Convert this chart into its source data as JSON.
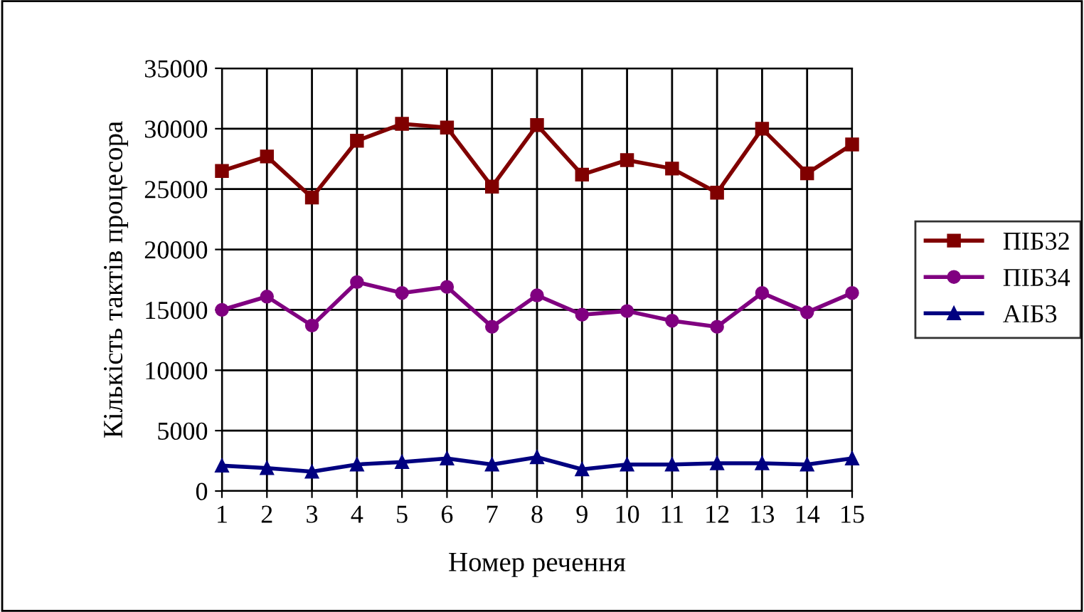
{
  "chart_data": {
    "type": "line",
    "xlabel": "Номер речення",
    "ylabel": "Кількість тактів процесора",
    "categories": [
      "1",
      "2",
      "3",
      "4",
      "5",
      "6",
      "7",
      "8",
      "9",
      "10",
      "11",
      "12",
      "13",
      "14",
      "15"
    ],
    "series": [
      {
        "name": "ПІБ32",
        "color": "#800000",
        "marker": "square",
        "values": [
          26500,
          27700,
          24300,
          29000,
          30400,
          30100,
          25200,
          30300,
          26200,
          27400,
          26700,
          24700,
          30000,
          26300,
          28700
        ]
      },
      {
        "name": "ПІБ34",
        "color": "#800080",
        "marker": "circle",
        "values": [
          15000,
          16100,
          13700,
          17300,
          16400,
          16900,
          13600,
          16200,
          14600,
          14900,
          14100,
          13600,
          16400,
          14800,
          16400
        ]
      },
      {
        "name": "АІБ3",
        "color": "#000080",
        "marker": "triangle",
        "values": [
          2100,
          1900,
          1600,
          2200,
          2400,
          2700,
          2200,
          2800,
          1800,
          2200,
          2200,
          2300,
          2300,
          2200,
          2700
        ]
      }
    ],
    "ylim": [
      0,
      35000
    ],
    "yticks": [
      0,
      5000,
      10000,
      15000,
      20000,
      25000,
      30000,
      35000
    ],
    "grid": true,
    "legend": "right"
  }
}
